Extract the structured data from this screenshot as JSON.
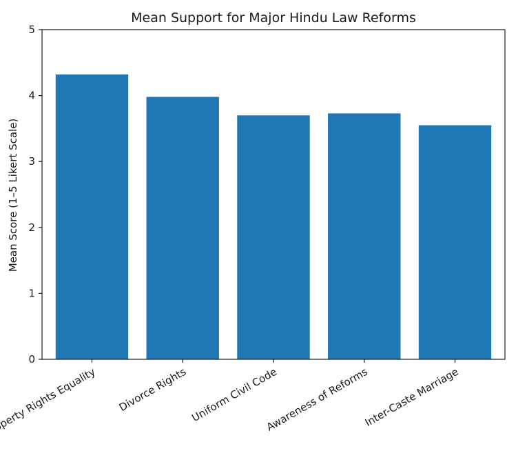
{
  "chart_data": {
    "type": "bar",
    "title": "Mean Support for Major Hindu Law Reforms",
    "xlabel": "",
    "ylabel": "Mean Score (1–5 Likert Scale)",
    "categories": [
      "Property Rights Equality",
      "Divorce Rights",
      "Uniform Civil Code",
      "Awareness of Reforms",
      "Inter-Caste Marriage"
    ],
    "values": [
      4.32,
      3.98,
      3.7,
      3.73,
      3.55
    ],
    "ylim": [
      0,
      5
    ],
    "yticks": [
      0,
      1,
      2,
      3,
      4,
      5
    ],
    "grid": false,
    "legend": "none",
    "bar_color": "#1f77b4"
  }
}
